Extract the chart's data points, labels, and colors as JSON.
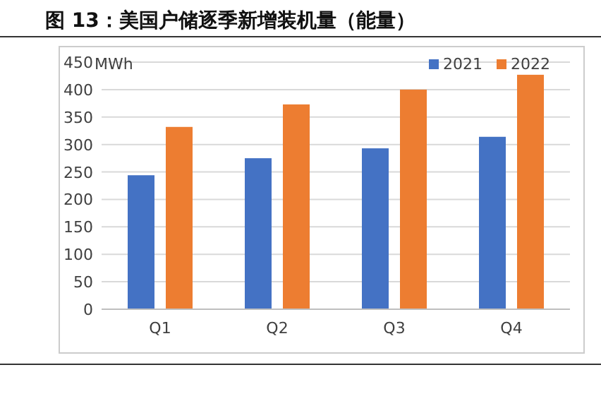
{
  "chart_data": {
    "type": "bar",
    "title": "图 13：美国户储逐季新增装机量（能量）",
    "ylabel": "MWh",
    "categories": [
      "Q1",
      "Q2",
      "Q3",
      "Q4"
    ],
    "series": [
      {
        "name": "2021",
        "color": "#4472c4",
        "values": [
          244,
          275,
          293,
          314
        ]
      },
      {
        "name": "2022",
        "color": "#ed7d31",
        "values": [
          332,
          373,
          400,
          427
        ]
      }
    ],
    "ylim": [
      0,
      450
    ],
    "yticks": [
      0,
      50,
      100,
      150,
      200,
      250,
      300,
      350,
      400,
      450
    ],
    "grid": "y",
    "legend": "top right"
  }
}
